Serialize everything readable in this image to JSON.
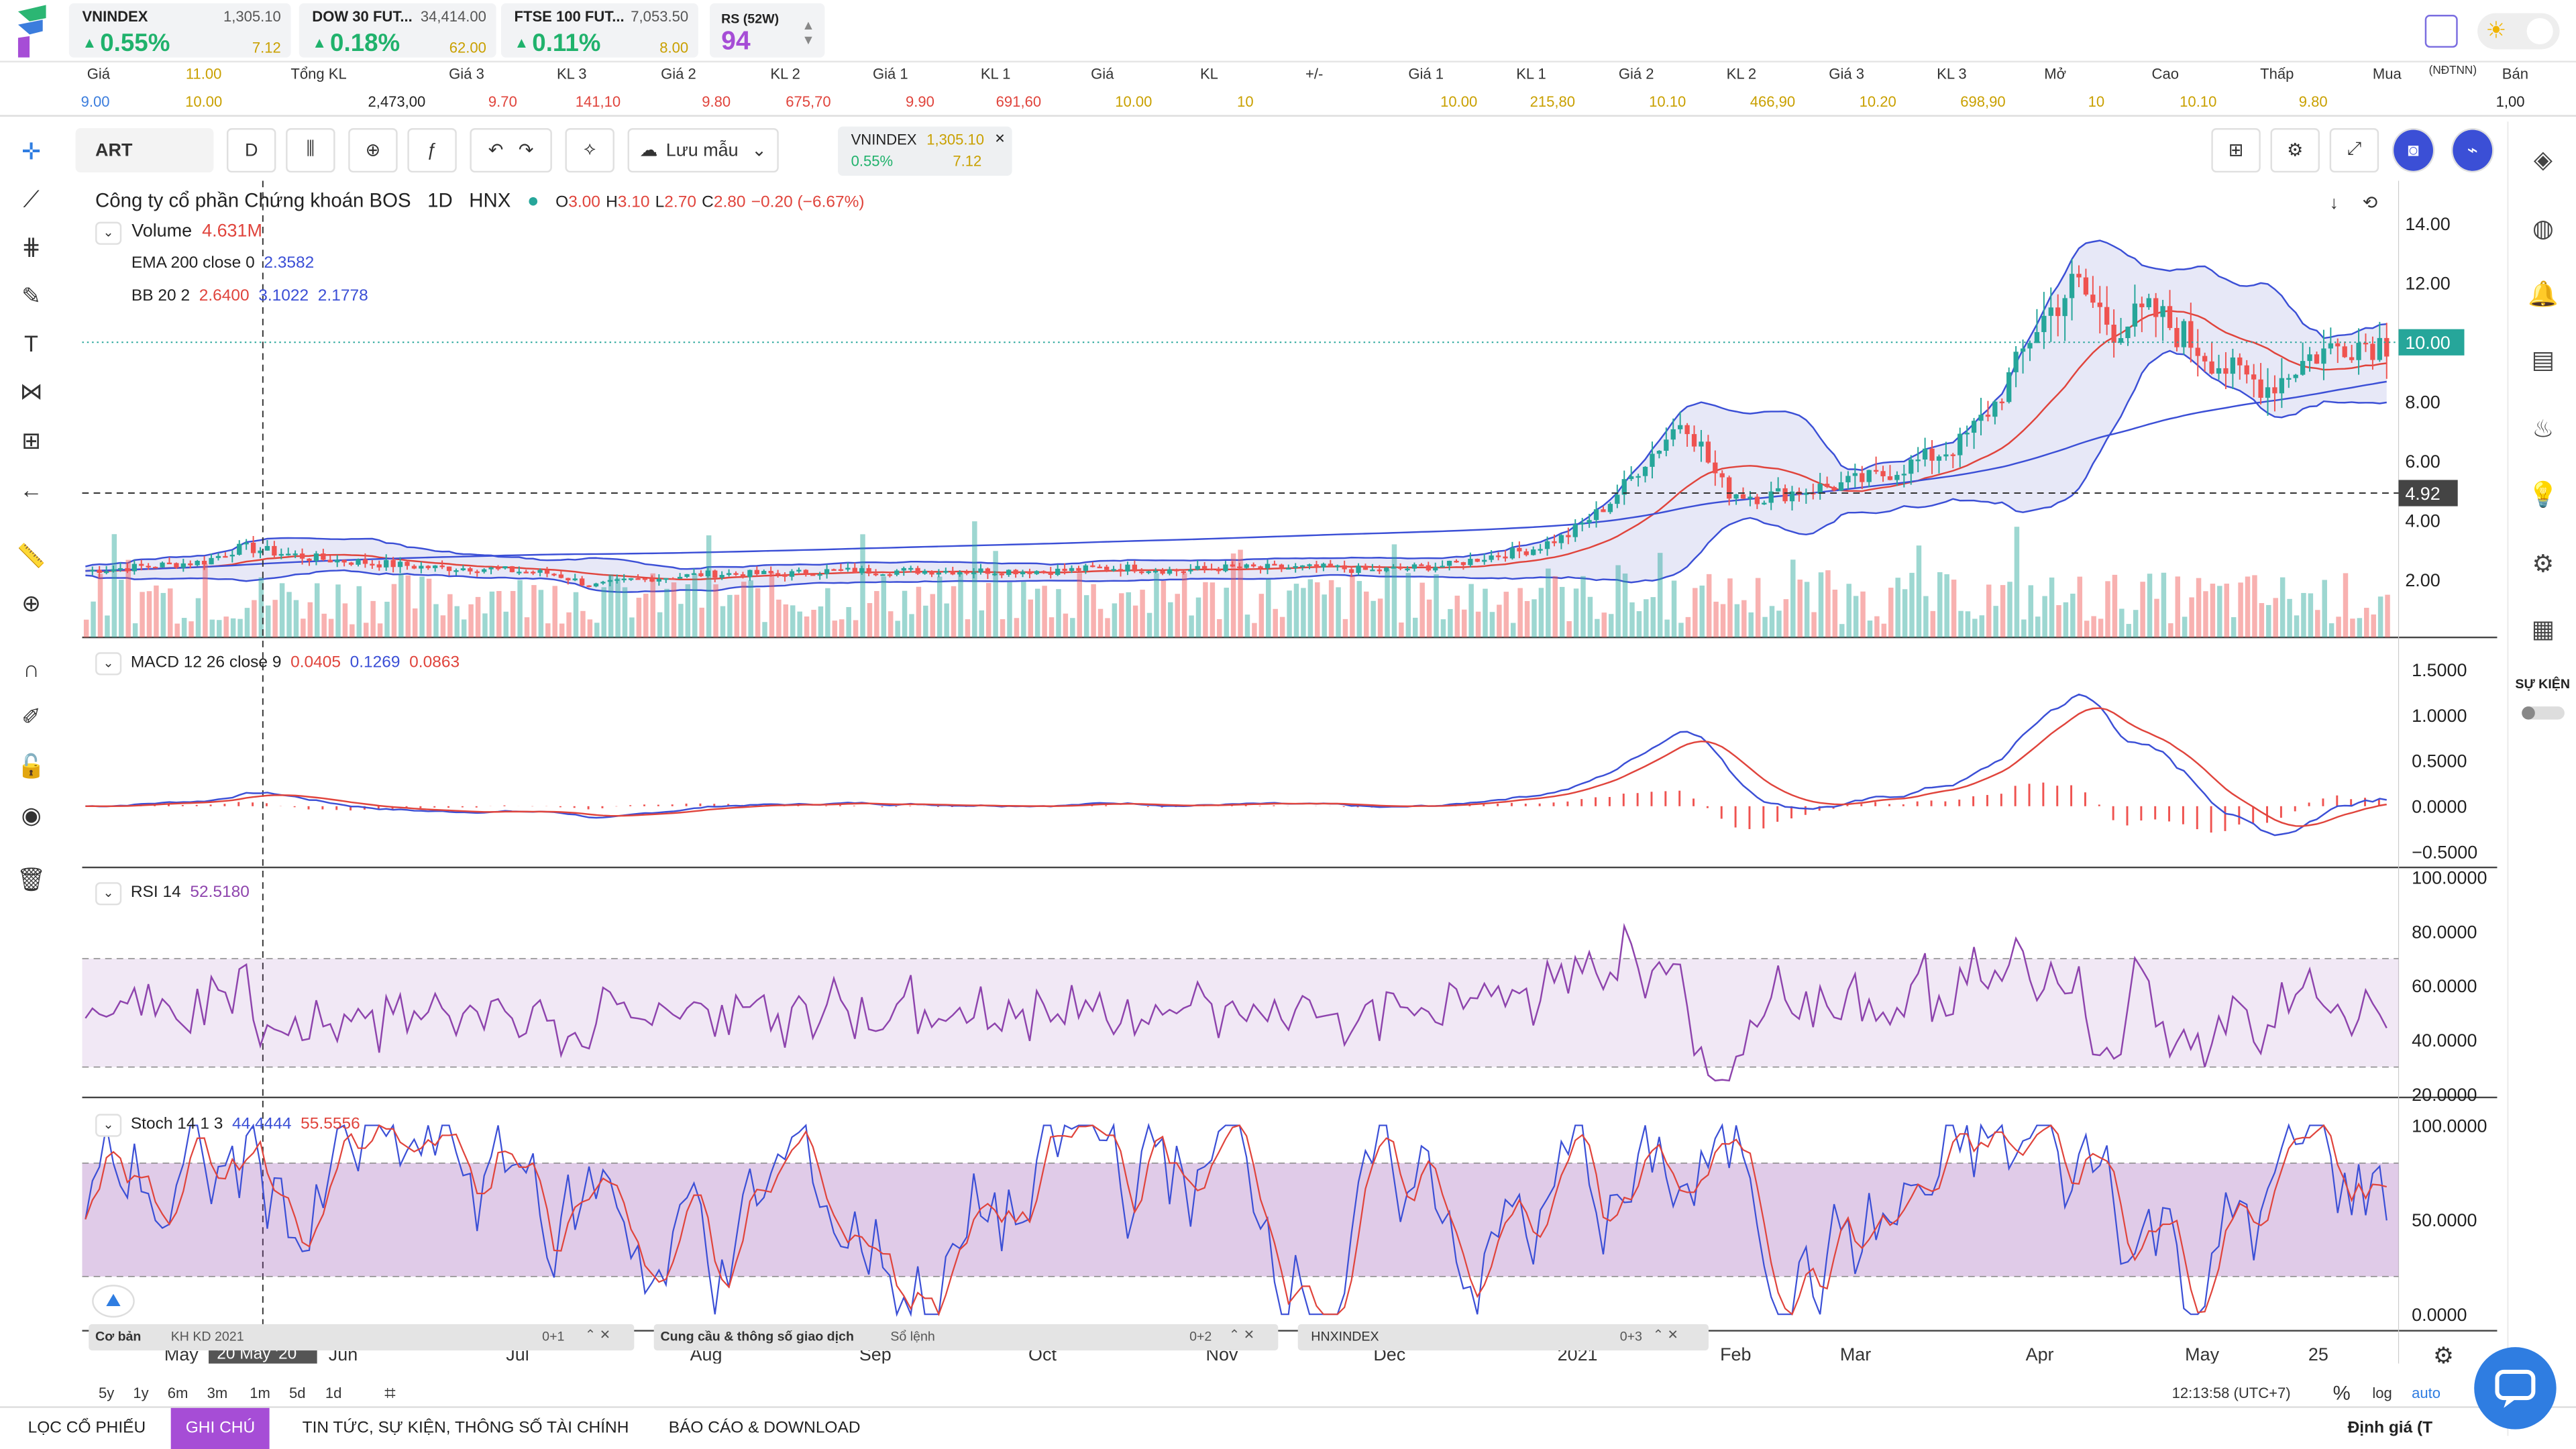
{
  "indices": [
    {
      "name": "VNINDEX",
      "value": "1,305.10",
      "pct": "0.55%",
      "change": "7.12"
    },
    {
      "name": "DOW 30 FUT...",
      "value": "34,414.00",
      "pct": "0.18%",
      "change": "62.00"
    },
    {
      "name": "FTSE 100 FUT...",
      "value": "7,053.50",
      "pct": "0.11%",
      "change": "8.00"
    }
  ],
  "rs": {
    "label": "RS (52W)",
    "value": "94"
  },
  "book": {
    "headers": [
      "Giá",
      "Tổng KL",
      "Giá 3",
      "KL 3",
      "Giá 2",
      "KL 2",
      "Giá 1",
      "KL 1",
      "Giá",
      "KL",
      "+/-",
      "Giá 1",
      "KL 1",
      "Giá 2",
      "KL 2",
      "Giá 3",
      "KL 3",
      "Mở",
      "Cao",
      "Thấp",
      "Mua",
      "(NĐTNN)",
      "Bán"
    ],
    "top_extra": "11.00",
    "values": [
      "9.00",
      "10.00",
      "2,473,00",
      "9.70",
      "141,10",
      "9.80",
      "675,70",
      "9.90",
      "691,60",
      "10.00",
      "10",
      "",
      "10.00",
      "215,80",
      "10.10",
      "466,90",
      "10.20",
      "698,90",
      "10",
      "10.10",
      "9.80",
      "",
      "1,00"
    ]
  },
  "toolbar": {
    "symbol": "ART",
    "interval": "D",
    "save_label": "Lưu mẫu",
    "mini_name": "VNINDEX",
    "mini_value": "1,305.10",
    "mini_pct": "0.55%",
    "mini_change": "7.12"
  },
  "legend": {
    "title": "Công ty cổ phần Chứng khoán BOS",
    "interval": "1D",
    "exchange": "HNX",
    "o": "3.00",
    "h": "3.10",
    "l": "2.70",
    "c": "2.80",
    "chg": "−0.20 (−6.67%)",
    "volume_label": "Volume",
    "volume_value": "4.631M",
    "ema_label": "EMA 200 close 0",
    "ema_value": "2.3582",
    "bb_label": "BB 20 2",
    "bb1": "2.6400",
    "bb2": "3.1022",
    "bb3": "2.1778",
    "macd_label": "MACD 12 26 close 9",
    "macd1": "0.0405",
    "macd2": "0.1269",
    "macd3": "0.0863",
    "rsi_label": "RSI 14",
    "rsi_value": "52.5180",
    "stoch_label": "Stoch 14 1 3",
    "stoch1": "44.4444",
    "stoch2": "55.5556"
  },
  "price_axis": [
    "14.00",
    "12.00",
    "10.00",
    "8.00",
    "6.00",
    "4.00",
    "2.00"
  ],
  "price_current": "10.00",
  "price_cross": "4.92",
  "macd_axis": [
    "1.5000",
    "1.0000",
    "0.5000",
    "0.0000",
    "−0.5000"
  ],
  "rsi_axis": [
    "100.0000",
    "80.0000",
    "60.0000",
    "40.0000",
    "20.0000"
  ],
  "stoch_axis": [
    "100.0000",
    "50.0000",
    "0.0000"
  ],
  "time_axis": [
    "May",
    "Jun",
    "Jul",
    "Aug",
    "Sep",
    "Oct",
    "Nov",
    "Dec",
    "2021",
    "Feb",
    "Mar",
    "Apr",
    "May",
    "25"
  ],
  "time_cross": "20 May '20",
  "ranges": [
    "5y",
    "1y",
    "6m",
    "3m",
    "1m",
    "5d",
    "1d"
  ],
  "clock": "12:13:58 (UTC+7)",
  "scale": [
    "%",
    "log",
    "auto"
  ],
  "panels": [
    {
      "tab1": "Cơ bản",
      "tab2": "KH KD 2021",
      "meta": "0+1"
    },
    {
      "tab1": "Cung cầu & thông số giao dịch",
      "tab2": "Sổ lệnh",
      "meta": "0+2"
    },
    {
      "tab1": "HNXINDEX",
      "tab2": "",
      "meta": "0+3"
    }
  ],
  "tabs": [
    "LỌC CỔ PHIẾU",
    "GHI CHÚ",
    "TIN TỨC, SỰ KIỆN, THÔNG SỐ TÀI CHÍNH",
    "BÁO CÁO & DOWNLOAD"
  ],
  "dinh_gia": "Định giá (T",
  "su_kien": "SỰ KIỆN",
  "colors": {
    "up": "#26a69a",
    "down": "#ef5350",
    "bb": "#3b4fd6",
    "ema": "#3b4fd6",
    "rsi": "#8e44ad",
    "accent": "#a64dd6"
  },
  "chart_data": {
    "type": "candlestick",
    "price_ylim": [
      1,
      15
    ],
    "close_path": [
      2.3,
      2.4,
      2.5,
      2.6,
      3.1,
      2.9,
      2.7,
      2.6,
      2.5,
      2.4,
      2.4,
      2.3,
      2.2,
      1.8,
      2.0,
      2.1,
      2.2,
      2.2,
      2.2,
      2.3,
      2.3,
      2.3,
      2.3,
      2.3,
      2.3,
      2.3,
      2.4,
      2.4,
      2.3,
      2.4,
      2.4,
      2.4,
      2.4,
      2.3,
      2.4,
      2.5,
      2.8,
      3.0,
      3.5,
      4.5,
      6.0,
      7.5,
      5.0,
      4.8,
      5.0,
      5.2,
      5.5,
      6.0,
      6.5,
      8.0,
      10.5,
      12.0,
      10.5,
      11.0,
      10.0,
      9.0,
      8.5,
      9.5,
      10.0,
      10.0
    ],
    "rsi_range": [
      20,
      100
    ],
    "stoch_range": [
      0,
      100
    ],
    "macd_range": [
      -0.6,
      1.6
    ]
  }
}
